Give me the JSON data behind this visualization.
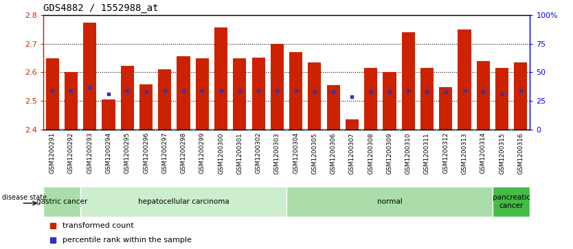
{
  "title": "GDS4882 / 1552988_at",
  "samples": [
    "GSM1200291",
    "GSM1200292",
    "GSM1200293",
    "GSM1200294",
    "GSM1200295",
    "GSM1200296",
    "GSM1200297",
    "GSM1200298",
    "GSM1200299",
    "GSM1200300",
    "GSM1200301",
    "GSM1200302",
    "GSM1200303",
    "GSM1200304",
    "GSM1200305",
    "GSM1200306",
    "GSM1200307",
    "GSM1200308",
    "GSM1200309",
    "GSM1200310",
    "GSM1200311",
    "GSM1200312",
    "GSM1200313",
    "GSM1200314",
    "GSM1200315",
    "GSM1200316"
  ],
  "bar_tops": [
    2.648,
    2.6,
    2.772,
    2.504,
    2.622,
    2.558,
    2.61,
    2.655,
    2.648,
    2.756,
    2.648,
    2.652,
    2.7,
    2.67,
    2.635,
    2.556,
    2.435,
    2.614,
    2.6,
    2.74,
    2.614,
    2.548,
    2.748,
    2.64,
    2.614,
    2.635
  ],
  "blue_y": [
    2.535,
    2.535,
    2.548,
    2.524,
    2.536,
    2.53,
    2.536,
    2.536,
    2.536,
    2.536,
    2.536,
    2.536,
    2.536,
    2.536,
    2.53,
    2.53,
    2.515,
    2.53,
    2.53,
    2.536,
    2.53,
    2.53,
    2.536,
    2.53,
    2.525,
    2.536
  ],
  "ymin": 2.4,
  "ymax": 2.8,
  "bar_color": "#CC2200",
  "blue_color": "#3333BB",
  "plot_bg": "#FFFFFF",
  "tick_bg": "#D8D8D8",
  "groups": [
    {
      "label": "gastric cancer",
      "start": 0,
      "end": 2,
      "color": "#AADDAA"
    },
    {
      "label": "hepatocellular carcinoma",
      "start": 2,
      "end": 13,
      "color": "#CCEECC"
    },
    {
      "label": "normal",
      "start": 13,
      "end": 24,
      "color": "#AADDAA"
    },
    {
      "label": "pancreatic\ncancer",
      "start": 24,
      "end": 26,
      "color": "#44BB44"
    }
  ],
  "right_yticks_pct": [
    0,
    25,
    50,
    75,
    100
  ],
  "right_yticklabels": [
    "0",
    "25",
    "50",
    "75",
    "100%"
  ],
  "left_yticks": [
    2.4,
    2.5,
    2.6,
    2.7,
    2.8
  ],
  "left_yticklabels": [
    "2.4",
    "2.5",
    "2.6",
    "2.7",
    "2.8"
  ]
}
